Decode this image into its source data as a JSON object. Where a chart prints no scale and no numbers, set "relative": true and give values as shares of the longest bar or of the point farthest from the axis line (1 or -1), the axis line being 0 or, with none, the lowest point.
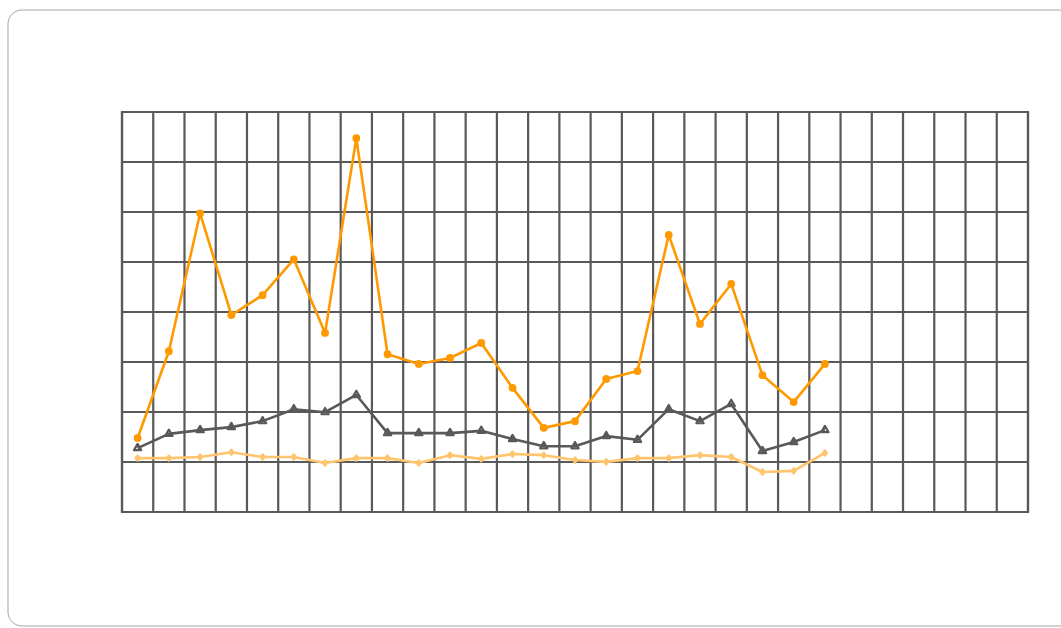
{
  "chart_data": {
    "type": "line",
    "relative": true,
    "grid": true,
    "categories": [
      null,
      null,
      null,
      null,
      null,
      null,
      null,
      null,
      null,
      null,
      null,
      null,
      null,
      null,
      null,
      null,
      null,
      null,
      null,
      null,
      null,
      null,
      null,
      null,
      null,
      null,
      null,
      null,
      null
    ],
    "series": [
      {
        "color": "#ffc56e",
        "marker": "diamond",
        "values": [
          0.144,
          0.144,
          0.147,
          0.16,
          0.147,
          0.147,
          0.131,
          0.144,
          0.144,
          0.131,
          0.152,
          0.142,
          0.155,
          0.152,
          0.139,
          0.134,
          0.144,
          0.144,
          0.152,
          0.147,
          0.107,
          0.11,
          0.158,
          null,
          null,
          null,
          null,
          null,
          null
        ]
      },
      {
        "color": "#ff9900",
        "marker": "circle",
        "values": [
          0.198,
          0.43,
          0.799,
          0.527,
          0.58,
          0.676,
          0.479,
          1,
          0.422,
          0.396,
          0.412,
          0.452,
          0.332,
          0.225,
          0.243,
          0.356,
          0.377,
          0.741,
          0.503,
          0.61,
          0.366,
          0.294,
          0.396,
          null,
          null,
          null,
          null,
          null,
          null
        ]
      },
      {
        "color": "#595959",
        "marker": "triangle",
        "values": [
          0.171,
          0.209,
          0.219,
          0.227,
          0.243,
          0.275,
          0.267,
          0.313,
          0.211,
          0.211,
          0.211,
          0.217,
          0.195,
          0.176,
          0.176,
          0.203,
          0.193,
          0.275,
          0.243,
          0.289,
          0.163,
          0.187,
          0.219,
          null,
          null,
          null,
          null,
          null,
          null
        ]
      }
    ]
  }
}
